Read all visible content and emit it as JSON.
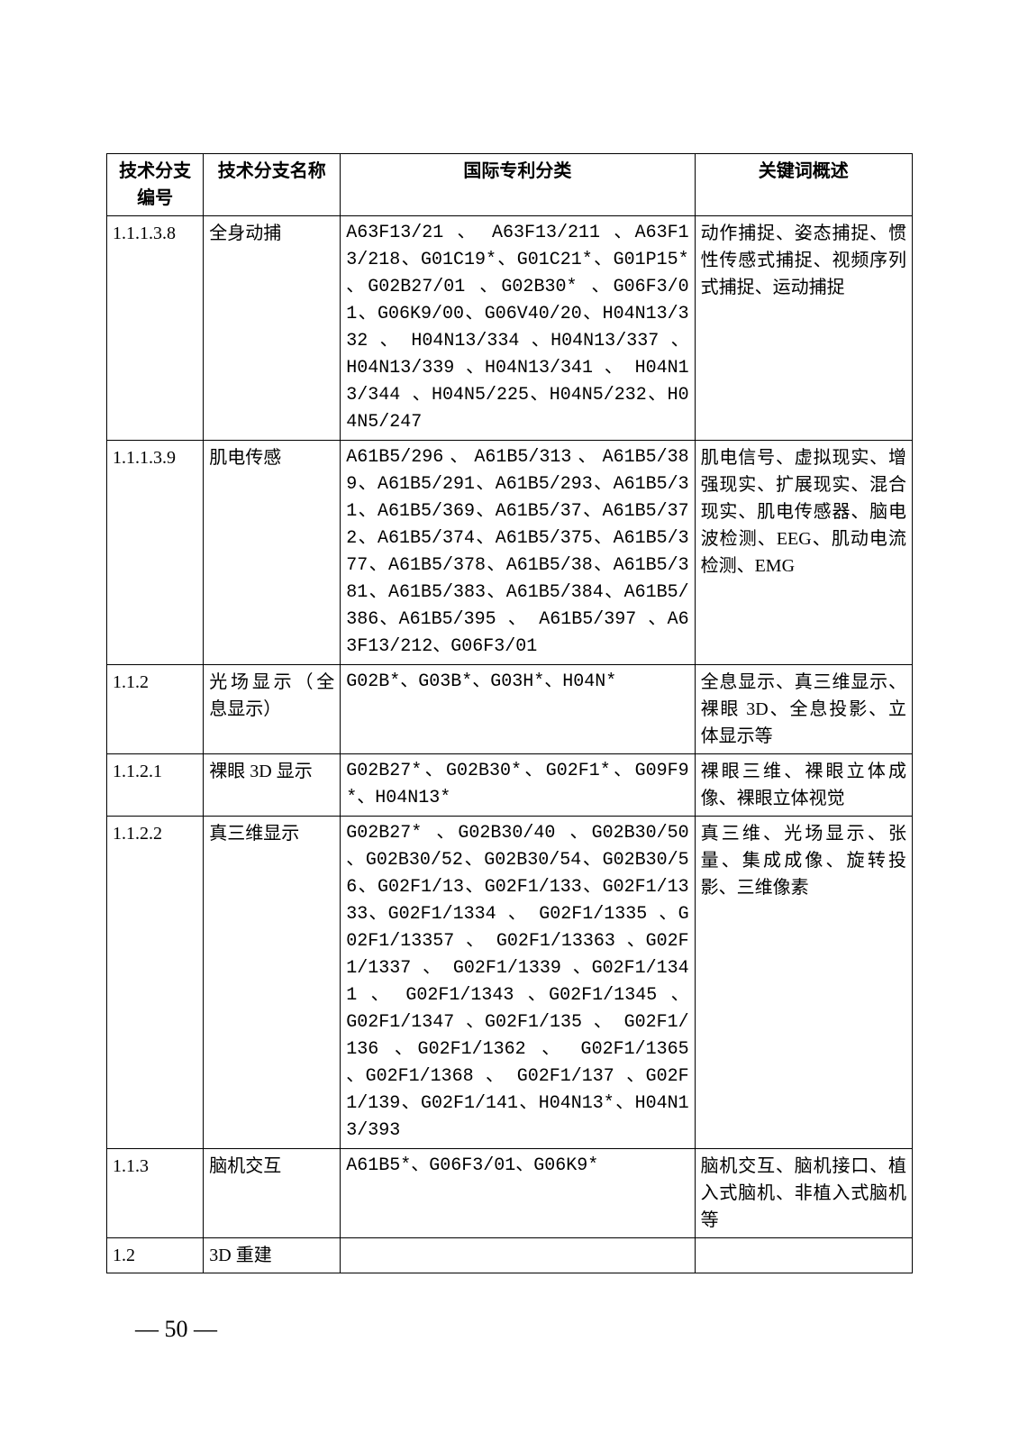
{
  "table": {
    "columns": [
      "技术分支编号",
      "技术分支名称",
      "国际专利分类",
      "关键词概述"
    ],
    "rows": [
      {
        "id": "1.1.1.3.8",
        "name": "全身动捕",
        "ipc": "A63F13/21 、 A63F13/211 、A63F13/218、G01C19*、G01C21*、G01P15* 、G02B27/01 、G02B30* 、G06F3/01、G06K9/00、G06V40/20、H04N13/332 、 H04N13/334 、H04N13/337 、 H04N13/339 、H04N13/341 、 H04N13/344 、H04N5/225、H04N5/232、H04N5/247",
        "kw": "动作捕捉、姿态捕捉、惯性传感式捕捉、视频序列式捕捉、运动捕捉"
      },
      {
        "id": "1.1.1.3.9",
        "name": "肌电传感",
        "ipc": "A61B5/296、A61B5/313、A61B5/389、A61B5/291、A61B5/293、A61B5/31、A61B5/369、A61B5/37、A61B5/372、A61B5/374、A61B5/375、A61B5/377、A61B5/378、A61B5/38、A61B5/381、A61B5/383、A61B5/384、A61B5/386、A61B5/395 、 A61B5/397 、A63F13/212、G06F3/01",
        "kw": "肌电信号、虚拟现实、增强现实、扩展现实、混合现实、肌电传感器、脑电波检测、EEG、肌动电流检测、EMG"
      },
      {
        "id": "1.1.2",
        "name": "光场显示（全息显示）",
        "ipc": "G02B*、G03B*、G03H*、H04N*",
        "kw": "全息显示、真三维显示、裸眼 3D、全息投影、立体显示等"
      },
      {
        "id": "1.1.2.1",
        "name": "裸眼 3D 显示",
        "ipc": "G02B27*、G02B30*、G02F1*、G09F9*、H04N13*",
        "kw": "裸眼三维、裸眼立体成像、裸眼立体视觉"
      },
      {
        "id": "1.1.2.2",
        "name": "真三维显示",
        "ipc": "G02B27* 、G02B30/40 、G02B30/50 、G02B30/52、G02B30/54、G02B30/56、G02F1/13、G02F1/133、G02F1/1333、G02F1/1334 、 G02F1/1335 、G02F1/13357 、 G02F1/13363 、G02F1/1337 、 G02F1/1339 、G02F1/1341 、 G02F1/1343 、G02F1/1345 、 G02F1/1347 、G02F1/135 、 G02F1/136 、G02F1/1362 、 G02F1/1365 、G02F1/1368 、 G02F1/137 、G02F1/139、G02F1/141、H04N13*、H04N13/393",
        "kw": "真三维、光场显示、张量、集成成像、旋转投影、三维像素"
      },
      {
        "id": "1.1.3",
        "name": "脑机交互",
        "ipc": "A61B5*、G06F3/01、G06K9*",
        "kw": "脑机交互、脑机接口、植入式脑机、非植入式脑机等"
      },
      {
        "id": "1.2",
        "name": "3D 重建",
        "ipc": "",
        "kw": ""
      }
    ]
  },
  "page_number": "— 50 —"
}
